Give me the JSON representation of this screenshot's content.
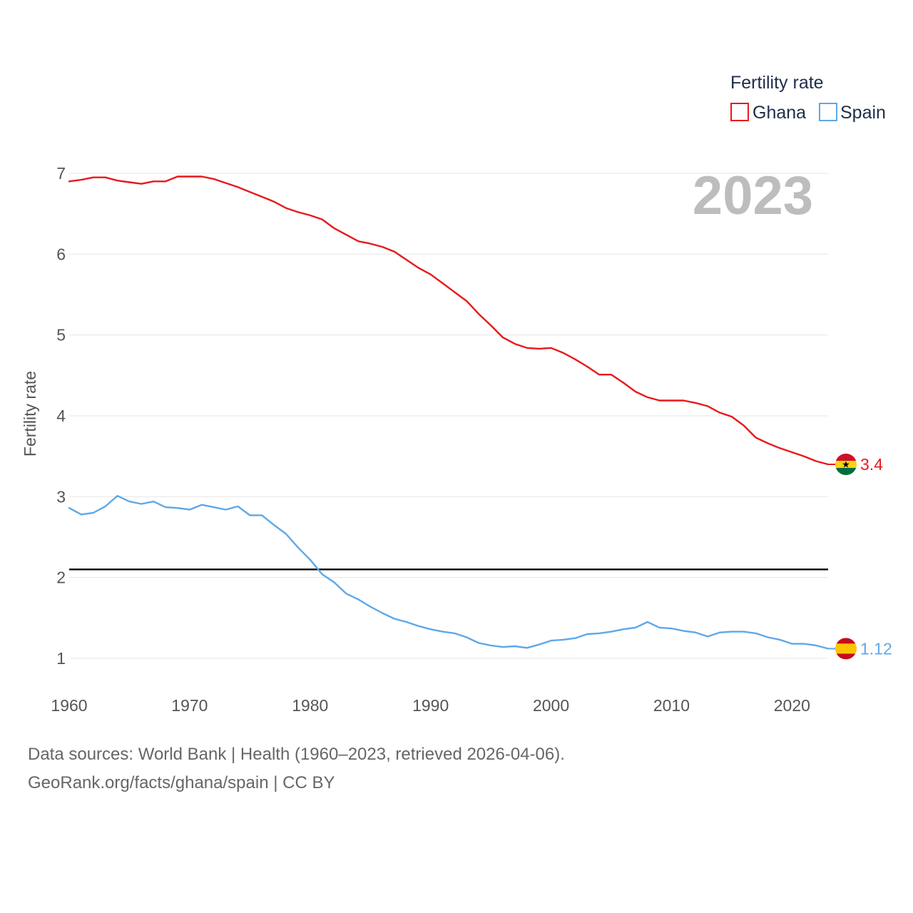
{
  "chart_data": {
    "type": "line",
    "legend_title": "Fertility rate",
    "ylabel": "Fertility rate",
    "xlabel": "",
    "current_year": "2023",
    "xlim": [
      1960,
      2023
    ],
    "ylim": [
      0.7,
      7.1
    ],
    "x_ticks": [
      "1960",
      "1970",
      "1980",
      "1990",
      "2000",
      "2010",
      "2020"
    ],
    "y_ticks": [
      "1",
      "2",
      "3",
      "4",
      "5",
      "6",
      "7"
    ],
    "reference_line": {
      "value": 2.1,
      "color": "#000000"
    },
    "x": [
      1960,
      1961,
      1962,
      1963,
      1964,
      1965,
      1966,
      1967,
      1968,
      1969,
      1970,
      1971,
      1972,
      1973,
      1974,
      1975,
      1976,
      1977,
      1978,
      1979,
      1980,
      1981,
      1982,
      1983,
      1984,
      1985,
      1986,
      1987,
      1988,
      1989,
      1990,
      1991,
      1992,
      1993,
      1994,
      1995,
      1996,
      1997,
      1998,
      1999,
      2000,
      2001,
      2002,
      2003,
      2004,
      2005,
      2006,
      2007,
      2008,
      2009,
      2010,
      2011,
      2012,
      2013,
      2014,
      2015,
      2016,
      2017,
      2018,
      2019,
      2020,
      2021,
      2022,
      2023
    ],
    "series": [
      {
        "name": "Ghana",
        "color": "#e8191c",
        "end_label": "3.4",
        "values": [
          6.9,
          6.92,
          6.95,
          6.95,
          6.91,
          6.89,
          6.87,
          6.9,
          6.9,
          6.96,
          6.96,
          6.96,
          6.93,
          6.88,
          6.83,
          6.77,
          6.71,
          6.65,
          6.57,
          6.52,
          6.48,
          6.43,
          6.32,
          6.24,
          6.16,
          6.13,
          6.09,
          6.03,
          5.93,
          5.83,
          5.75,
          5.64,
          5.53,
          5.42,
          5.26,
          5.12,
          4.97,
          4.89,
          4.84,
          4.83,
          4.84,
          4.78,
          4.7,
          4.61,
          4.51,
          4.51,
          4.41,
          4.3,
          4.23,
          4.19,
          4.19,
          4.19,
          4.16,
          4.12,
          4.04,
          3.99,
          3.88,
          3.73,
          3.66,
          3.6,
          3.55,
          3.5,
          3.44,
          3.4
        ]
      },
      {
        "name": "Spain",
        "color": "#5ea8e8",
        "end_label": "1.12",
        "values": [
          2.86,
          2.78,
          2.8,
          2.88,
          3.01,
          2.94,
          2.91,
          2.94,
          2.87,
          2.86,
          2.84,
          2.9,
          2.87,
          2.84,
          2.88,
          2.77,
          2.77,
          2.65,
          2.54,
          2.37,
          2.22,
          2.04,
          1.94,
          1.8,
          1.73,
          1.64,
          1.56,
          1.49,
          1.45,
          1.4,
          1.36,
          1.33,
          1.31,
          1.26,
          1.19,
          1.16,
          1.14,
          1.15,
          1.13,
          1.17,
          1.22,
          1.23,
          1.25,
          1.3,
          1.31,
          1.33,
          1.36,
          1.38,
          1.45,
          1.38,
          1.37,
          1.34,
          1.32,
          1.27,
          1.32,
          1.33,
          1.33,
          1.31,
          1.26,
          1.23,
          1.18,
          1.18,
          1.16,
          1.12
        ]
      }
    ]
  },
  "footer": {
    "source_line": "Data sources: World Bank | Health (1960–2023, retrieved 2026-04-06).",
    "credit_line": "GeoRank.org/facts/ghana/spain | CC BY"
  }
}
